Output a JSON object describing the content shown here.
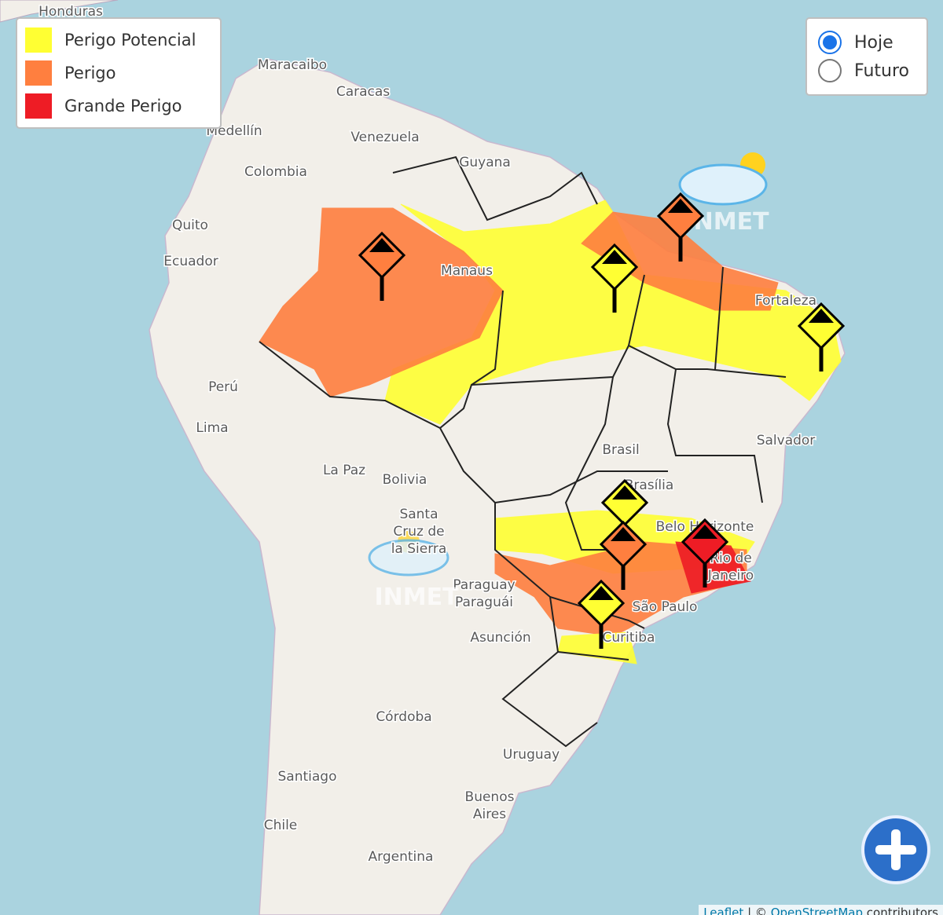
{
  "legend": {
    "items": [
      {
        "label": "Perigo Potencial",
        "color": "#ffff33"
      },
      {
        "label": "Perigo",
        "color": "#ff7f3f"
      },
      {
        "label": "Grande Perigo",
        "color": "#ee1c25"
      }
    ]
  },
  "day_selector": {
    "options": [
      {
        "label": "Hoje",
        "selected": true
      },
      {
        "label": "Futuro",
        "selected": false
      }
    ]
  },
  "map_labels": [
    {
      "lines": [
        "Honduras"
      ]
    },
    {
      "lines": [
        "Maracaibo"
      ]
    },
    {
      "lines": [
        "Caracas"
      ]
    },
    {
      "lines": [
        "Medellín"
      ]
    },
    {
      "lines": [
        "Venezuela"
      ]
    },
    {
      "lines": [
        "Guyana"
      ]
    },
    {
      "lines": [
        "Colombia"
      ]
    },
    {
      "lines": [
        "Quito"
      ]
    },
    {
      "lines": [
        "Ecuador"
      ]
    },
    {
      "lines": [
        "Manaus"
      ]
    },
    {
      "lines": [
        "Fortaleza"
      ]
    },
    {
      "lines": [
        "Perú"
      ]
    },
    {
      "lines": [
        "Lima"
      ]
    },
    {
      "lines": [
        "Brasil"
      ]
    },
    {
      "lines": [
        "Brasília"
      ]
    },
    {
      "lines": [
        "Salvador"
      ]
    },
    {
      "lines": [
        "La Paz"
      ]
    },
    {
      "lines": [
        "Bolivia"
      ]
    },
    {
      "lines": [
        "Santa",
        "Cruz de",
        "la Sierra"
      ]
    },
    {
      "lines": [
        "Belo Horizonte"
      ]
    },
    {
      "lines": [
        "Rio de",
        "Janeiro"
      ]
    },
    {
      "lines": [
        "Paraguay",
        "Paraguái"
      ]
    },
    {
      "lines": [
        "Asunción"
      ]
    },
    {
      "lines": [
        "São Paulo"
      ]
    },
    {
      "lines": [
        "Curitiba"
      ]
    },
    {
      "lines": [
        "Córdoba"
      ]
    },
    {
      "lines": [
        "Uruguay"
      ]
    },
    {
      "lines": [
        "Santiago"
      ]
    },
    {
      "lines": [
        "Buenos",
        "Aires"
      ]
    },
    {
      "lines": [
        "Chile"
      ]
    },
    {
      "lines": [
        "Argentina"
      ]
    }
  ],
  "watermarks": [
    "INMET",
    "INMET"
  ],
  "attribution": {
    "leaflet": "Leaflet",
    "separator": "| ©",
    "osm": "OpenStreetMap",
    "suffix": "contributors"
  }
}
